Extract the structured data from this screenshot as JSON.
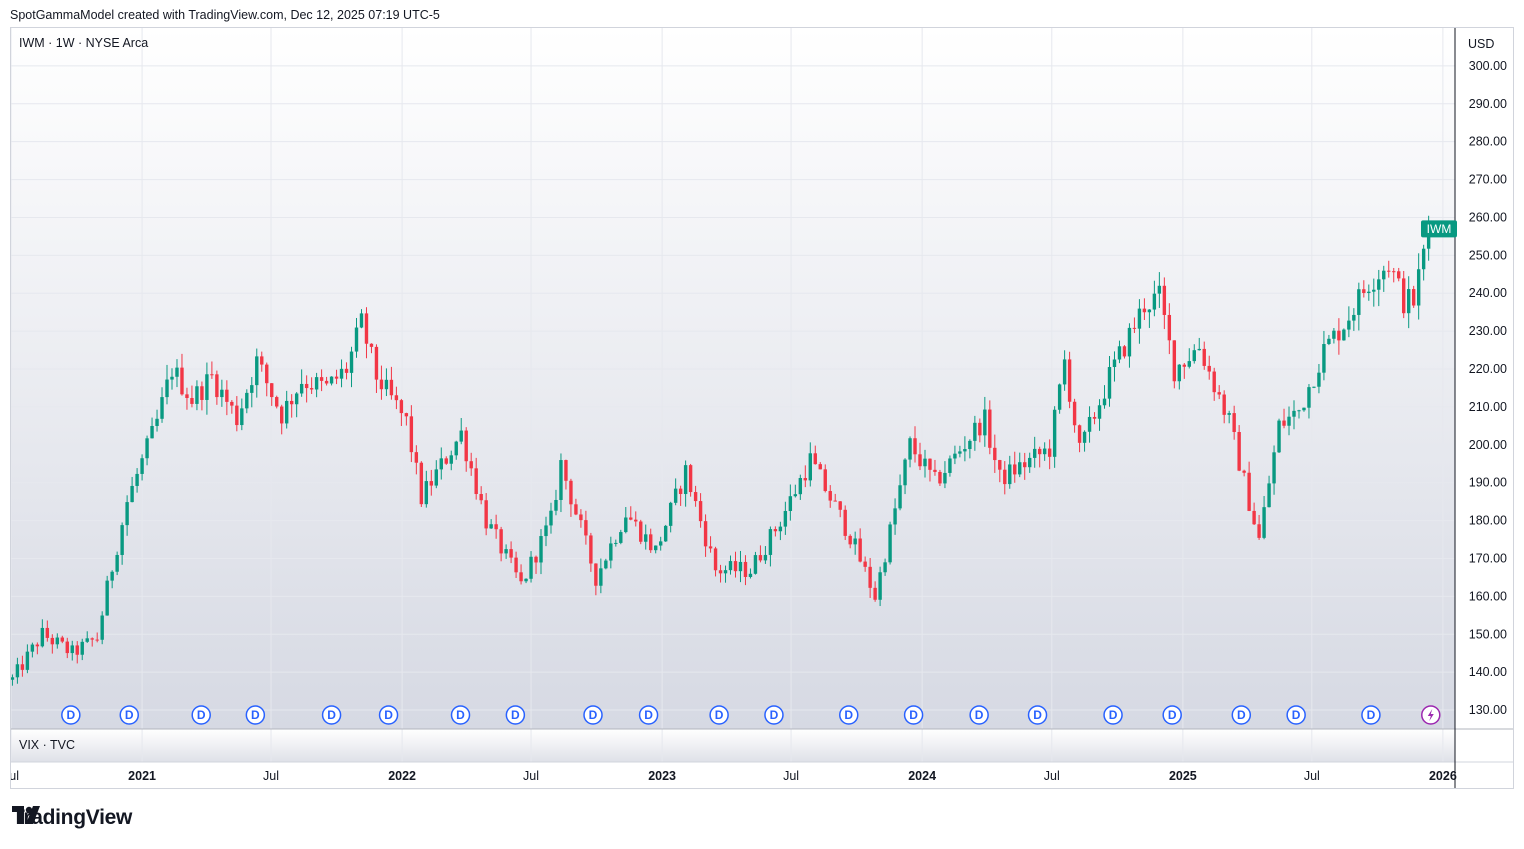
{
  "header": {
    "caption": "SpotGammaModel created with TradingView.com, Dec 12, 2025 07:19 UTC-5"
  },
  "main_pane": {
    "symbol_label": "IWM · 1W · NYSE Arca",
    "currency_label": "USD",
    "last_price_badge": "IWM",
    "badge_color": "#089981"
  },
  "sub_pane": {
    "symbol_label": "VIX · TVC"
  },
  "footer": {
    "brand": "TradingView"
  },
  "colors": {
    "up": "#089981",
    "down": "#f23645",
    "dividend_marker": "#2962ff",
    "event_marker": "#9c27b0"
  },
  "chart_data": {
    "type": "candlestick",
    "title": "IWM · 1W · NYSE Arca",
    "ylabel": "USD",
    "ylim": [
      125,
      310
    ],
    "y_ticks": [
      "130.00",
      "140.00",
      "150.00",
      "160.00",
      "170.00",
      "180.00",
      "190.00",
      "200.00",
      "210.00",
      "220.00",
      "230.00",
      "240.00",
      "250.00",
      "260.00",
      "270.00",
      "280.00",
      "290.00",
      "300.00"
    ],
    "x_ticks": [
      {
        "label": "Jul",
        "date": "2020-07-01",
        "bold": false
      },
      {
        "label": "2021",
        "date": "2021-01-01",
        "bold": true
      },
      {
        "label": "Jul",
        "date": "2021-07-01",
        "bold": false
      },
      {
        "label": "2022",
        "date": "2022-01-01",
        "bold": true
      },
      {
        "label": "Jul",
        "date": "2022-07-01",
        "bold": false
      },
      {
        "label": "2023",
        "date": "2023-01-01",
        "bold": true
      },
      {
        "label": "Jul",
        "date": "2023-07-01",
        "bold": false
      },
      {
        "label": "2024",
        "date": "2024-01-01",
        "bold": true
      },
      {
        "label": "Jul",
        "date": "2024-07-01",
        "bold": false
      },
      {
        "label": "2025",
        "date": "2025-01-01",
        "bold": true
      },
      {
        "label": "Jul",
        "date": "2025-07-01",
        "bold": false
      },
      {
        "label": "2026",
        "date": "2026-01-01",
        "bold": true
      }
    ],
    "x_range": [
      "2020-07-01",
      "2026-01-18"
    ],
    "price_path": [
      [
        "2020-07-03",
        138
      ],
      [
        "2020-08-14",
        150
      ],
      [
        "2020-09-25",
        145
      ],
      [
        "2020-10-30",
        149
      ],
      [
        "2020-11-13",
        162
      ],
      [
        "2020-12-11",
        185
      ],
      [
        "2021-01-22",
        206
      ],
      [
        "2021-02-12",
        220
      ],
      [
        "2021-03-12",
        212
      ],
      [
        "2021-04-09",
        218
      ],
      [
        "2021-05-14",
        207
      ],
      [
        "2021-06-11",
        222
      ],
      [
        "2021-07-16",
        208
      ],
      [
        "2021-08-13",
        217
      ],
      [
        "2021-09-17",
        215
      ],
      [
        "2021-10-15",
        220
      ],
      [
        "2021-11-05",
        232
      ],
      [
        "2021-11-26",
        218
      ],
      [
        "2021-12-17",
        212
      ],
      [
        "2022-01-07",
        206
      ],
      [
        "2022-01-28",
        186
      ],
      [
        "2022-03-25",
        203
      ],
      [
        "2022-04-29",
        180
      ],
      [
        "2022-06-17",
        163
      ],
      [
        "2022-07-29",
        180
      ],
      [
        "2022-08-12",
        195
      ],
      [
        "2022-09-30",
        165
      ],
      [
        "2022-11-11",
        182
      ],
      [
        "2022-12-23",
        172
      ],
      [
        "2023-02-03",
        193
      ],
      [
        "2023-03-17",
        167
      ],
      [
        "2023-05-05",
        167
      ],
      [
        "2023-06-16",
        180
      ],
      [
        "2023-07-28",
        196
      ],
      [
        "2023-09-22",
        176
      ],
      [
        "2023-10-27",
        160
      ],
      [
        "2023-12-15",
        200
      ],
      [
        "2024-01-19",
        190
      ],
      [
        "2024-03-28",
        207
      ],
      [
        "2024-04-19",
        191
      ],
      [
        "2024-06-28",
        199
      ],
      [
        "2024-07-19",
        222
      ],
      [
        "2024-08-09",
        198
      ],
      [
        "2024-09-20",
        218
      ],
      [
        "2024-11-08",
        237
      ],
      [
        "2024-11-29",
        239
      ],
      [
        "2024-12-20",
        220
      ],
      [
        "2025-01-24",
        226
      ],
      [
        "2025-03-07",
        206
      ],
      [
        "2025-04-04",
        185
      ],
      [
        "2025-04-18",
        175
      ],
      [
        "2025-05-16",
        205
      ],
      [
        "2025-06-13",
        209
      ],
      [
        "2025-07-18",
        225
      ],
      [
        "2025-08-15",
        232
      ],
      [
        "2025-09-19",
        243
      ],
      [
        "2025-10-17",
        248
      ],
      [
        "2025-11-07",
        238
      ],
      [
        "2025-11-21",
        238
      ],
      [
        "2025-12-12",
        257
      ]
    ],
    "last_price": 257,
    "dividend_markers": [
      "2020-09-23",
      "2020-12-14",
      "2021-03-25",
      "2021-06-09",
      "2021-09-24",
      "2021-12-13",
      "2022-03-24",
      "2022-06-09",
      "2022-09-26",
      "2022-12-13",
      "2023-03-22",
      "2023-06-07",
      "2023-09-20",
      "2023-12-20",
      "2024-03-21",
      "2024-06-11",
      "2024-09-25",
      "2024-12-17",
      "2025-03-24",
      "2025-06-09",
      "2025-09-22",
      "2025-12-15"
    ],
    "event_marker": "2025-12-15"
  }
}
